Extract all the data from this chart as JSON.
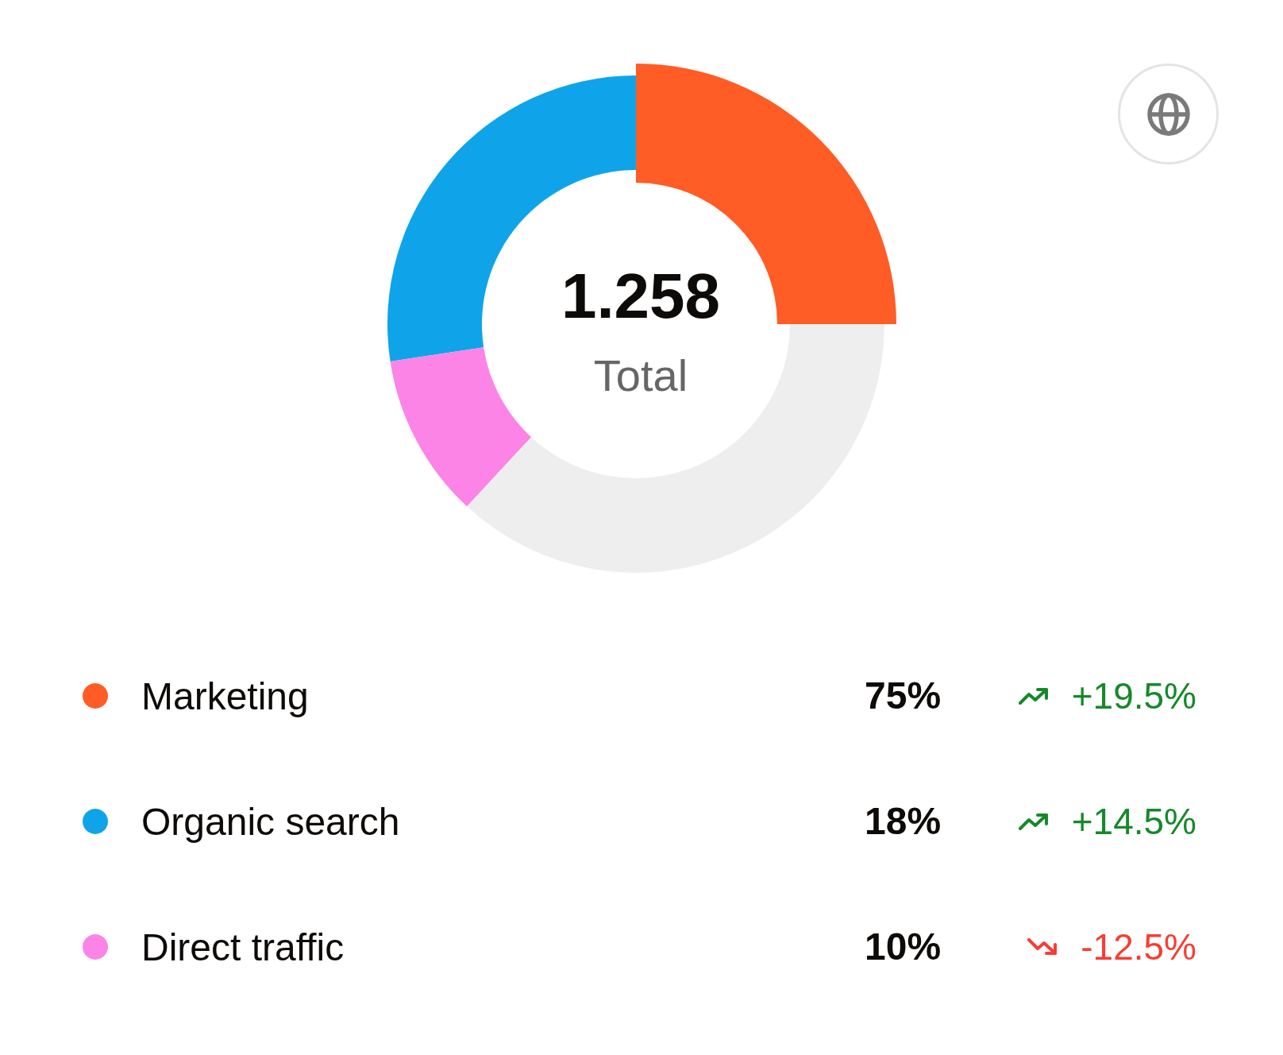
{
  "chart_data": {
    "type": "donut",
    "categories": [
      "Marketing",
      "Organic search",
      "Direct traffic",
      null
    ],
    "values": [
      25,
      27.4,
      10.7,
      36.9
    ],
    "colors": [
      "#ff5c26",
      "#0fa4e9",
      "#fc84e6",
      "#eeeeee"
    ],
    "legend": "bottom left",
    "annotations": [
      "1.258",
      "Total",
      "75%",
      "+19.5%",
      "18%",
      "+14.5%",
      "10%",
      "-12.5%"
    ]
  }
}
